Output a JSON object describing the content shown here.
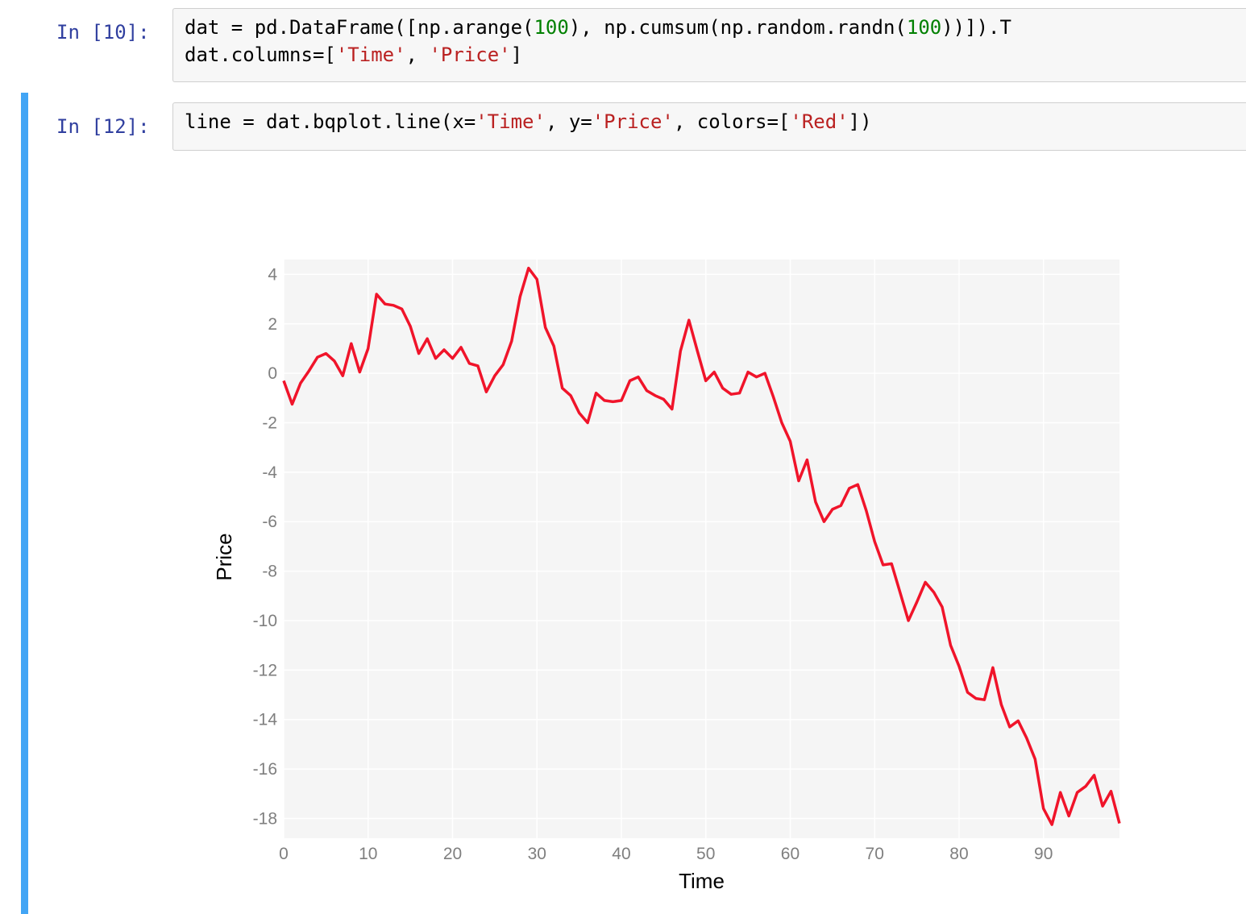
{
  "cells": [
    {
      "prompt": "In [10]:",
      "lines": [
        [
          {
            "t": "dat = pd.DataFrame([np.arange(",
            "k": "p"
          },
          {
            "t": "100",
            "k": "num"
          },
          {
            "t": "), np.cumsum(np.random.randn(",
            "k": "p"
          },
          {
            "t": "100",
            "k": "num"
          },
          {
            "t": "))]).T",
            "k": "p"
          }
        ],
        [
          {
            "t": "dat.columns=[",
            "k": "p"
          },
          {
            "t": "'Time'",
            "k": "str"
          },
          {
            "t": ", ",
            "k": "p"
          },
          {
            "t": "'Price'",
            "k": "str"
          },
          {
            "t": "]",
            "k": "p"
          }
        ]
      ]
    },
    {
      "prompt": "In [12]:",
      "lines": [
        [
          {
            "t": "line = dat.bqplot.line(x=",
            "k": "p"
          },
          {
            "t": "'Time'",
            "k": "str"
          },
          {
            "t": ", y=",
            "k": "p"
          },
          {
            "t": "'Price'",
            "k": "str"
          },
          {
            "t": ", colors=[",
            "k": "p"
          },
          {
            "t": "'Red'",
            "k": "str"
          },
          {
            "t": "])",
            "k": "p"
          }
        ]
      ]
    }
  ],
  "colors": {
    "prompt": "#303F9F",
    "number": "#008000",
    "string": "#BA2121",
    "selected_cell_bar": "#42A5F5",
    "line": "#F0142A",
    "plot_background": "#F5F5F5"
  },
  "chart_data": {
    "type": "line",
    "xlabel": "Time",
    "ylabel": "Price",
    "xlim": [
      0,
      99
    ],
    "ylim": [
      -18.8,
      4.6
    ],
    "xticks": [
      0,
      10,
      20,
      30,
      40,
      50,
      60,
      70,
      80,
      90
    ],
    "yticks": [
      4,
      2,
      0,
      -2,
      -4,
      -6,
      -8,
      -10,
      -12,
      -14,
      -16,
      -18
    ],
    "grid": true,
    "series": [
      {
        "color": "#F0142A",
        "x": [
          0,
          1,
          2,
          3,
          4,
          5,
          6,
          7,
          8,
          9,
          10,
          11,
          12,
          13,
          14,
          15,
          16,
          17,
          18,
          19,
          20,
          21,
          22,
          23,
          24,
          25,
          26,
          27,
          28,
          29,
          30,
          31,
          32,
          33,
          34,
          35,
          36,
          37,
          38,
          39,
          40,
          41,
          42,
          43,
          44,
          45,
          46,
          47,
          48,
          49,
          50,
          51,
          52,
          53,
          54,
          55,
          56,
          57,
          58,
          59,
          60,
          61,
          62,
          63,
          64,
          65,
          66,
          67,
          68,
          69,
          70,
          71,
          72,
          73,
          74,
          75,
          76,
          77,
          78,
          79,
          80,
          81,
          82,
          83,
          84,
          85,
          86,
          87,
          88,
          89,
          90,
          91,
          92,
          93,
          94,
          95,
          96,
          97,
          98,
          99
        ],
        "y": [
          -0.3,
          -1.25,
          -0.4,
          0.1,
          0.65,
          0.8,
          0.5,
          -0.1,
          1.2,
          0.05,
          1.0,
          3.2,
          2.8,
          2.75,
          2.6,
          1.9,
          0.8,
          1.4,
          0.6,
          0.95,
          0.6,
          1.05,
          0.4,
          0.3,
          -0.75,
          -0.1,
          0.35,
          1.3,
          3.1,
          4.25,
          3.8,
          1.85,
          1.1,
          -0.6,
          -0.9,
          -1.6,
          -2.0,
          -0.8,
          -1.1,
          -1.15,
          -1.1,
          -0.3,
          -0.15,
          -0.7,
          -0.9,
          -1.05,
          -1.45,
          0.9,
          2.15,
          0.9,
          -0.3,
          0.05,
          -0.6,
          -0.85,
          -0.8,
          0.05,
          -0.15,
          0.0,
          -0.95,
          -2.0,
          -2.75,
          -4.35,
          -3.5,
          -5.2,
          -6.0,
          -5.5,
          -5.35,
          -4.65,
          -4.5,
          -5.55,
          -6.8,
          -7.75,
          -7.7,
          -8.85,
          -10.0,
          -9.25,
          -8.45,
          -8.85,
          -9.45,
          -11.0,
          -11.85,
          -12.9,
          -13.15,
          -13.2,
          -11.9,
          -13.4,
          -14.3,
          -14.05,
          -14.75,
          -15.6,
          -17.6,
          -18.25,
          -16.95,
          -17.9,
          -16.95,
          -16.7,
          -16.25,
          -17.5,
          -16.9,
          -18.2
        ]
      }
    ]
  }
}
